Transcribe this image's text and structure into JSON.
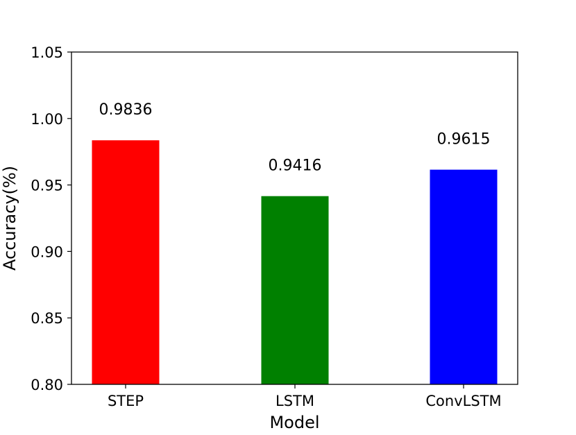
{
  "chart_data": {
    "type": "bar",
    "title": "",
    "xlabel": "Model",
    "ylabel": "Accuracy(%)",
    "categories": [
      "STEP",
      "LSTM",
      "ConvLSTM"
    ],
    "values": [
      0.9836,
      0.9416,
      0.9615
    ],
    "value_labels": [
      "0.9836",
      "0.9416",
      "0.9615"
    ],
    "colors": [
      "#ff0000",
      "#008000",
      "#0000ff"
    ],
    "ylim": [
      0.8,
      1.05
    ],
    "yticks": [
      0.8,
      0.85,
      0.9,
      0.95,
      1.0,
      1.05
    ],
    "ytick_labels": [
      "0.80",
      "0.85",
      "0.90",
      "0.95",
      "1.00",
      "1.05"
    ],
    "grid": false,
    "legend": "none"
  }
}
